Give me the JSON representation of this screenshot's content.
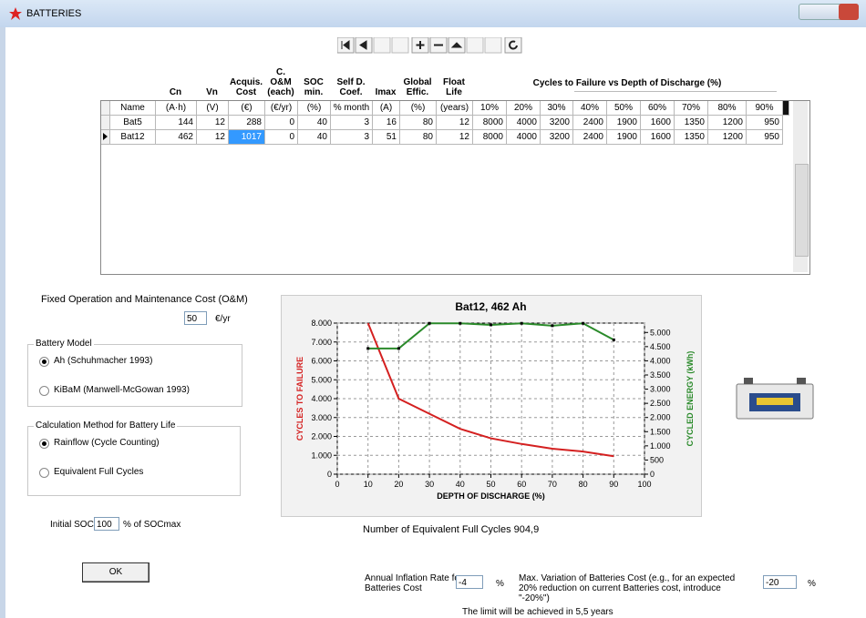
{
  "window": {
    "title": "BATTERIES"
  },
  "table": {
    "group_headers": [
      "Cn",
      "Vn",
      "Acquis. Cost",
      "C. O&M (each)",
      "SOC min.",
      "Self D. Coef.",
      "Imax",
      "Global Effic.",
      "Float Life",
      "Cycles to Failure vs Depth of Discharge (%)"
    ],
    "columns": [
      "Name",
      "(A·h)",
      "(V)",
      "(€)",
      "(€/yr)",
      "(%)",
      "% month",
      "(A)",
      "(%)",
      "(years)",
      "10%",
      "20%",
      "30%",
      "40%",
      "50%",
      "60%",
      "70%",
      "80%",
      "90%"
    ],
    "rows": [
      [
        "Bat5",
        144,
        12,
        288,
        0,
        40,
        3,
        16,
        80,
        12,
        8000,
        4000,
        3200,
        2400,
        1900,
        1600,
        1350,
        1200,
        950
      ],
      [
        "Bat12",
        462,
        12,
        1017,
        0,
        40,
        3,
        51,
        80,
        12,
        8000,
        4000,
        3200,
        2400,
        1900,
        1600,
        1350,
        1200,
        950
      ]
    ],
    "selected_row": 1,
    "selected_col": 3
  },
  "om": {
    "label": "Fixed Operation and Maintenance Cost (O&M)",
    "value": "50",
    "unit": "€/yr"
  },
  "battery_model": {
    "legend": "Battery Model",
    "options": [
      "Ah (Schuhmacher 1993)",
      "KiBaM (Manwell-McGowan 1993)"
    ],
    "selected": 0
  },
  "calc_method": {
    "legend": "Calculation Method for Battery Life",
    "options": [
      "Rainflow (Cycle Counting)",
      "Equivalent Full Cycles"
    ],
    "selected": 0
  },
  "initial_soc": {
    "label": "Initial SOC:",
    "value": "100",
    "unit": "% of SOCmax"
  },
  "ok": "OK",
  "chart": {
    "type": "line",
    "title": "Bat12, 462 Ah",
    "xlabel": "DEPTH OF DISCHARGE (%)",
    "ylabel": "CYCLES TO FAILURE",
    "y2label": "CYCLED ENERGY (kWh)",
    "x": [
      10,
      20,
      30,
      40,
      50,
      60,
      70,
      80,
      90
    ],
    "xlim": [
      0,
      100
    ],
    "xticks": [
      0,
      10,
      20,
      30,
      40,
      50,
      60,
      70,
      80,
      90,
      100
    ],
    "ylim": [
      0,
      8000
    ],
    "yticks": [
      0,
      {
        "value": 1000,
        "label": "1.000"
      },
      {
        "value": 2000,
        "label": "2.000"
      },
      {
        "value": 3000,
        "label": "3.000"
      },
      {
        "value": 4000,
        "label": "4.000"
      },
      {
        "value": 5000,
        "label": "5.000"
      },
      {
        "value": 6000,
        "label": "6.000"
      },
      {
        "value": 7000,
        "label": "7.000"
      },
      {
        "value": 8000,
        "label": "8.000"
      }
    ],
    "y2lim": [
      0,
      5330
    ],
    "y2ticks": [
      0,
      500,
      {
        "value": 1000,
        "label": "1.000"
      },
      {
        "value": 1500,
        "label": "1.500"
      },
      {
        "value": 2000,
        "label": "2.000"
      },
      {
        "value": 2500,
        "label": "2.500"
      },
      {
        "value": 3000,
        "label": "3.000"
      },
      {
        "value": 3500,
        "label": "3.500"
      },
      {
        "value": 4000,
        "label": "4.000"
      },
      {
        "value": 4500,
        "label": "4.500"
      },
      {
        "value": 5000,
        "label": "5.000"
      }
    ],
    "grid": true,
    "series": [
      {
        "color": "#d42020",
        "values": [
          8000,
          4000,
          3200,
          2400,
          1900,
          1600,
          1350,
          1200,
          950
        ]
      },
      {
        "color": "#2a8a2a",
        "axis": "y2",
        "values": [
          4435,
          4435,
          5322,
          5322,
          5267,
          5322,
          5239,
          5322,
          4740
        ]
      }
    ]
  },
  "equiv_cycles": "Number of Equivalent Full Cycles 904,9",
  "inflation": {
    "label": "Annual Inflation Rate for Batteries Cost",
    "value": "-4",
    "unit": "%"
  },
  "max_variation": {
    "label": "Max. Variation of Batteries Cost (e.g., for an expected 20% reduction on current Batteries cost, introduce \"-20%\")",
    "value": "-20",
    "unit": "%"
  },
  "limit_note": "The limit will be achieved in 5,5 years"
}
